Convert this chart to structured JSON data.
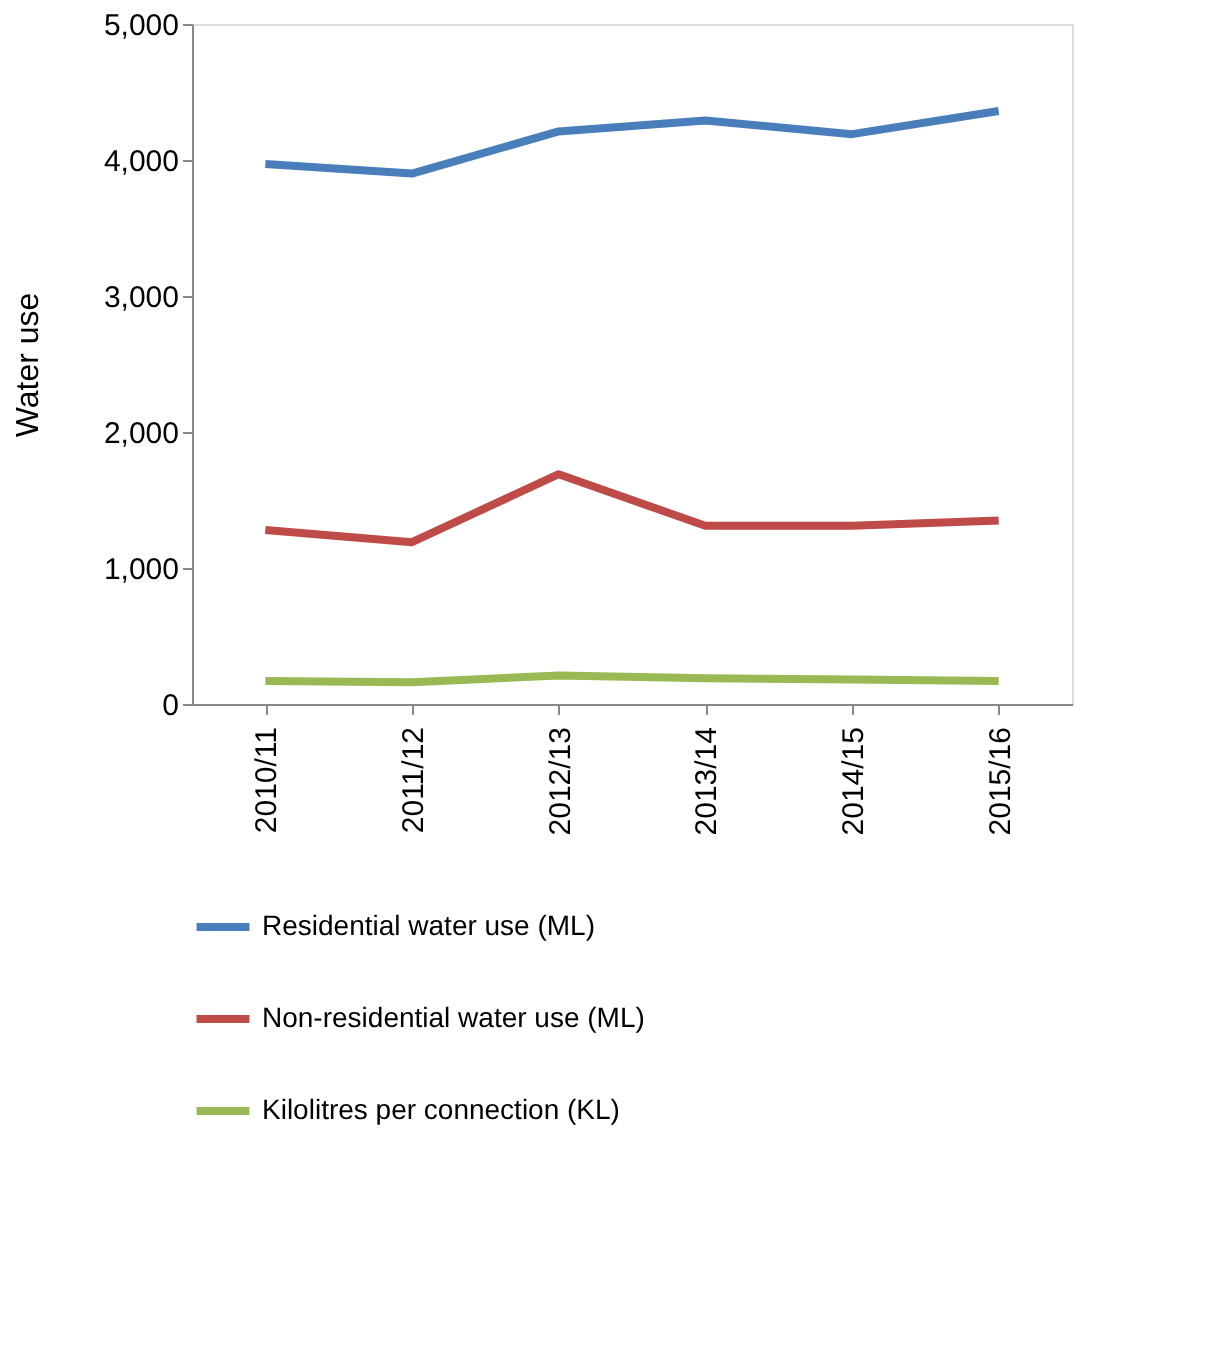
{
  "chart_data": {
    "type": "line",
    "ylabel": "Water use",
    "categories": [
      "2010/11",
      "2011/12",
      "2012/13",
      "2013/14",
      "2014/15",
      "2015/16"
    ],
    "series": [
      {
        "name": "Residential water use (ML)",
        "color": "#4a7ebb",
        "values": [
          3970,
          3900,
          4210,
          4290,
          4190,
          4360
        ]
      },
      {
        "name": "Non-residential water use (ML)",
        "color": "#be4b48",
        "values": [
          1280,
          1190,
          1690,
          1310,
          1310,
          1350
        ]
      },
      {
        "name": "Kilolitres per connection (KL)",
        "color": "#98b954",
        "values": [
          170,
          160,
          210,
          190,
          180,
          170
        ]
      }
    ],
    "ylim": [
      0,
      5000
    ],
    "yticks": [
      {
        "value": 0,
        "label": "0"
      },
      {
        "value": 1000,
        "label": "1,000"
      },
      {
        "value": 2000,
        "label": "2,000"
      },
      {
        "value": 3000,
        "label": "3,000"
      },
      {
        "value": 4000,
        "label": "4,000"
      },
      {
        "value": 5000,
        "label": "5,000"
      }
    ],
    "grid": false,
    "legend": "bottom",
    "marker": "none",
    "line_style": "solid"
  }
}
